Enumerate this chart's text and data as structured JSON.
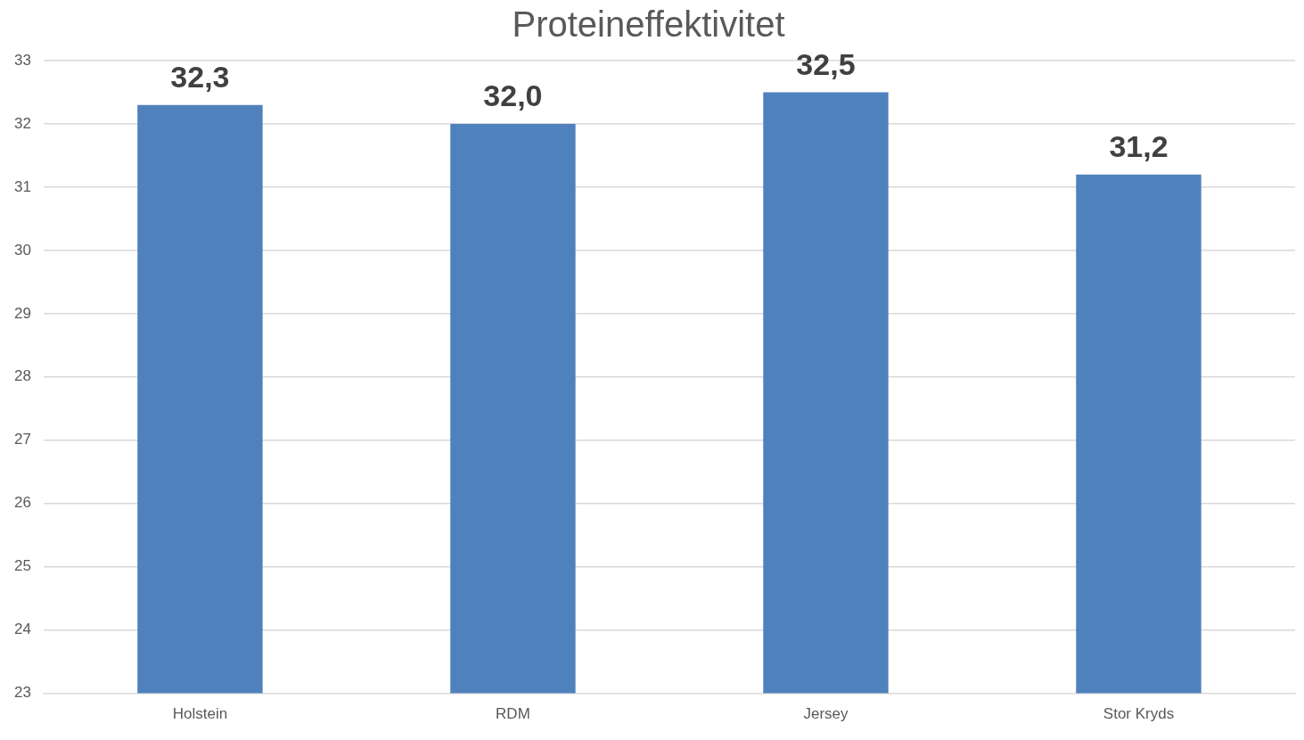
{
  "chart_data": {
    "type": "bar",
    "title": "Proteineffektivitet",
    "categories": [
      "Holstein",
      "RDM",
      "Jersey",
      "Stor Kryds"
    ],
    "values": [
      32.3,
      32.0,
      32.5,
      31.2
    ],
    "value_labels": [
      "32,3",
      "32,0",
      "32,5",
      "31,2"
    ],
    "color": "#4f81bd",
    "ylim": [
      23,
      33
    ],
    "yticks": [
      23,
      24,
      25,
      26,
      27,
      28,
      29,
      30,
      31,
      32,
      33
    ],
    "grid": "y",
    "legend": false
  }
}
